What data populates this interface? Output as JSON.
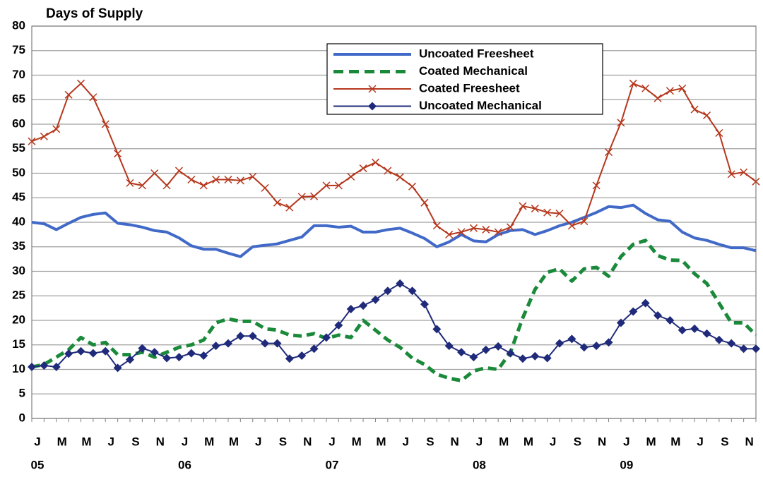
{
  "chart_data": {
    "type": "line",
    "title": "Days of Supply",
    "categories": [
      "J",
      null,
      "M",
      null,
      "M",
      null,
      "J",
      null,
      "S",
      null,
      "N",
      null,
      "J",
      null,
      "M",
      null,
      "M",
      null,
      "J",
      null,
      "S",
      null,
      "N",
      null,
      "J",
      null,
      "M",
      null,
      "M",
      null,
      "J",
      null,
      "S",
      null,
      "N",
      null,
      "J",
      null,
      "M",
      null,
      "M",
      null,
      "J",
      null,
      "S",
      null,
      "N",
      null,
      "J",
      null,
      "M",
      null,
      "M",
      null,
      "J",
      null,
      "S",
      null,
      "N",
      null
    ],
    "year_labels": [
      "05",
      "06",
      "07",
      "08",
      "09"
    ],
    "ylim": [
      0,
      80
    ],
    "yticks": [
      0,
      5,
      10,
      15,
      20,
      25,
      30,
      35,
      40,
      45,
      50,
      55,
      60,
      65,
      70,
      75,
      80
    ],
    "grid": true,
    "legend": "top-right",
    "series": [
      {
        "name": "Uncoated Freesheet",
        "color": "#4169c8",
        "marker": "none",
        "dash": false,
        "width": 4,
        "values": [
          40,
          39.7,
          38.5,
          39.8,
          41,
          41.6,
          41.9,
          39.8,
          39.5,
          39,
          38.3,
          38,
          36.8,
          35.2,
          34.5,
          34.5,
          33.7,
          33,
          35,
          35.3,
          35.6,
          36.3,
          37,
          39.3,
          39.3,
          39,
          39.2,
          38,
          38,
          38.5,
          38.8,
          37.8,
          36.7,
          35,
          36,
          37.5,
          36.2,
          36,
          37.5,
          38.3,
          38.5,
          37.5,
          38.3,
          39.3,
          40,
          41,
          42,
          43.2,
          43,
          43.5,
          41.8,
          40.5,
          40.2,
          38,
          36.8,
          36.3,
          35.5,
          34.8,
          34.8,
          34.2
        ]
      },
      {
        "name": "Coated Mechanical",
        "color": "#1a8a3a",
        "marker": "none",
        "dash": true,
        "width": 5,
        "values": [
          10.5,
          11,
          12.5,
          14,
          16.5,
          15,
          15.5,
          13,
          13,
          13.5,
          12.5,
          13.5,
          14.5,
          15,
          16,
          19.5,
          20.3,
          19.8,
          19.8,
          18.3,
          18,
          17,
          16.8,
          17.3,
          16.3,
          17,
          16.5,
          20,
          18,
          16,
          14.5,
          12.3,
          11,
          9,
          8.2,
          7.7,
          9.7,
          10.3,
          10,
          13.5,
          20.5,
          26.3,
          29.8,
          30.5,
          28,
          30.5,
          30.8,
          29,
          33,
          35.5,
          36.3,
          33.2,
          32.3,
          32.2,
          29.5,
          27.5,
          23.5,
          19.5,
          19.5,
          17
        ]
      },
      {
        "name": "Coated Freesheet",
        "color": "#b5371c",
        "marker": "x",
        "dash": false,
        "width": 2,
        "values": [
          56.5,
          57.5,
          59,
          66,
          68.3,
          65.5,
          60,
          54,
          48,
          47.5,
          50,
          47.5,
          50.5,
          48.7,
          47.5,
          48.7,
          48.7,
          48.5,
          49.3,
          47,
          44,
          43,
          45.2,
          45.3,
          47.5,
          47.5,
          49.3,
          51,
          52.2,
          50.5,
          49.2,
          47.3,
          44,
          39.3,
          37.5,
          38,
          38.8,
          38.5,
          38,
          39,
          43.3,
          42.8,
          42,
          41.8,
          39.3,
          40.2,
          47.5,
          54.3,
          60.3,
          68.3,
          67.3,
          65.3,
          66.8,
          67.3,
          63,
          61.8,
          58.2,
          49.8,
          50.2,
          48.3
        ]
      },
      {
        "name": "Uncoated Mechanical",
        "color": "#1f2a7a",
        "marker": "diamond",
        "dash": false,
        "width": 2,
        "values": [
          10.5,
          10.8,
          10.5,
          13.2,
          13.7,
          13.3,
          13.7,
          10.3,
          12,
          14.3,
          13.5,
          12.3,
          12.5,
          13.3,
          12.8,
          14.8,
          15.3,
          16.8,
          16.8,
          15.3,
          15.3,
          12.2,
          12.8,
          14.2,
          16.5,
          19,
          22.3,
          23,
          24.2,
          26,
          27.5,
          26,
          23.3,
          18.2,
          14.8,
          13.5,
          12.5,
          14,
          14.7,
          13.3,
          12.2,
          12.7,
          12.3,
          15.3,
          16.2,
          14.5,
          14.8,
          15.5,
          19.5,
          21.8,
          23.5,
          21,
          20,
          18,
          18.3,
          17.3,
          16,
          15.3,
          14.2,
          14.2
        ]
      }
    ]
  }
}
